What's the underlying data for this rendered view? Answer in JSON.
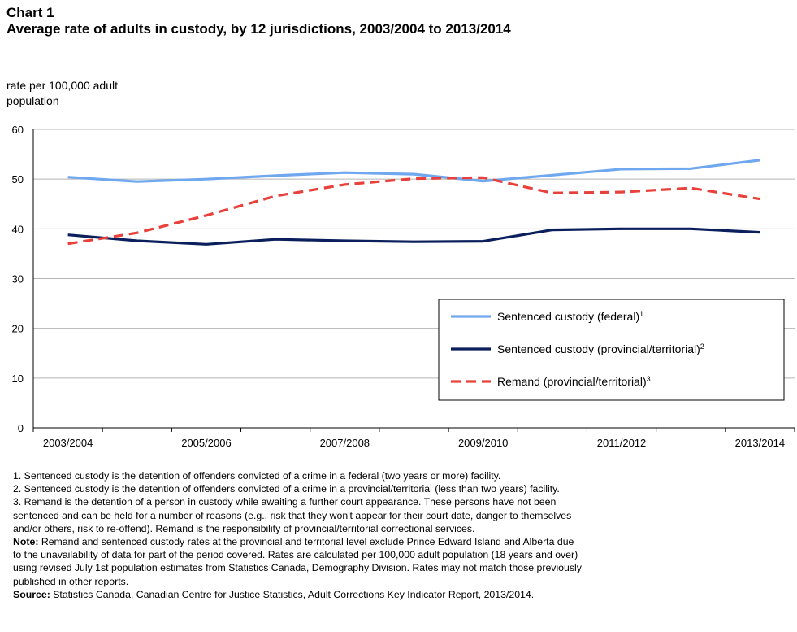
{
  "header": {
    "chart_label": "Chart 1",
    "title": "Average rate of adults in custody, by 12 jurisdictions, 2003/2004 to 2013/2014"
  },
  "chart_data": {
    "type": "line",
    "ylabel_lines": [
      "rate per 100,000 adult",
      "population"
    ],
    "ylim": [
      0,
      60
    ],
    "yticks": [
      0,
      10,
      20,
      30,
      40,
      50,
      60
    ],
    "x": [
      "2003/2004",
      "2004/2005",
      "2005/2006",
      "2006/2007",
      "2007/2008",
      "2008/2009",
      "2009/2010",
      "2010/2011",
      "2011/2012",
      "2012/2013",
      "2013/2014"
    ],
    "xtick_labels": [
      "2003/2004",
      "2005/2006",
      "2007/2008",
      "2009/2010",
      "2011/2012",
      "2013/2014"
    ],
    "grid": true,
    "legend_position": "lower-right",
    "series": [
      {
        "name": "Sentenced custody (federal)",
        "superscript": "1",
        "color": "#6fa8ef",
        "dash": "solid",
        "values": [
          50.4,
          49.5,
          50.0,
          50.7,
          51.3,
          51.0,
          49.6,
          50.8,
          52.0,
          52.1,
          53.8
        ]
      },
      {
        "name": "Sentenced custody (provincial/territorial)",
        "superscript": "2",
        "color": "#0b1f5c",
        "dash": "solid",
        "values": [
          38.8,
          37.6,
          36.9,
          37.9,
          37.6,
          37.4,
          37.5,
          39.8,
          40.0,
          40.0,
          39.3
        ]
      },
      {
        "name": "Remand (provincial/territorial)",
        "superscript": "3",
        "color": "#e8403a",
        "dash": "dashed",
        "values": [
          37.0,
          39.2,
          42.7,
          46.6,
          48.9,
          50.1,
          50.3,
          47.2,
          47.4,
          48.2,
          46.0
        ]
      }
    ]
  },
  "footnotes": {
    "lines": [
      "1. Sentenced custody is the detention of offenders convicted of a crime in a federal (two years or more) facility.",
      "2. Sentenced custody is the detention of offenders convicted of a crime in a provincial/territorial (less than two years) facility.",
      "3. Remand is the detention of a person in custody while awaiting a further court appearance. These persons have not been",
      "sentenced and can be held for a number of reasons (e.g., risk that they won't appear for their court date, danger to themselves",
      "and/or others, risk to re-offend). Remand is the responsibility of provincial/territorial correctional services."
    ],
    "note_label": "Note:",
    "note_lines": [
      " Remand and sentenced custody rates at the provincial and territorial level exclude Prince Edward Island and Alberta due",
      "to the unavailability of data for part of the period covered. Rates are calculated per 100,000  adult population (18 years and over)",
      "using revised July 1st population estimates from Statistics Canada, Demography Division. Rates may not match those previously",
      "published in other reports."
    ],
    "source_label": "Source:",
    "source_text": " Statistics Canada, Canadian Centre for Justice Statistics, Adult Corrections Key Indicator Report, 2013/2014."
  }
}
